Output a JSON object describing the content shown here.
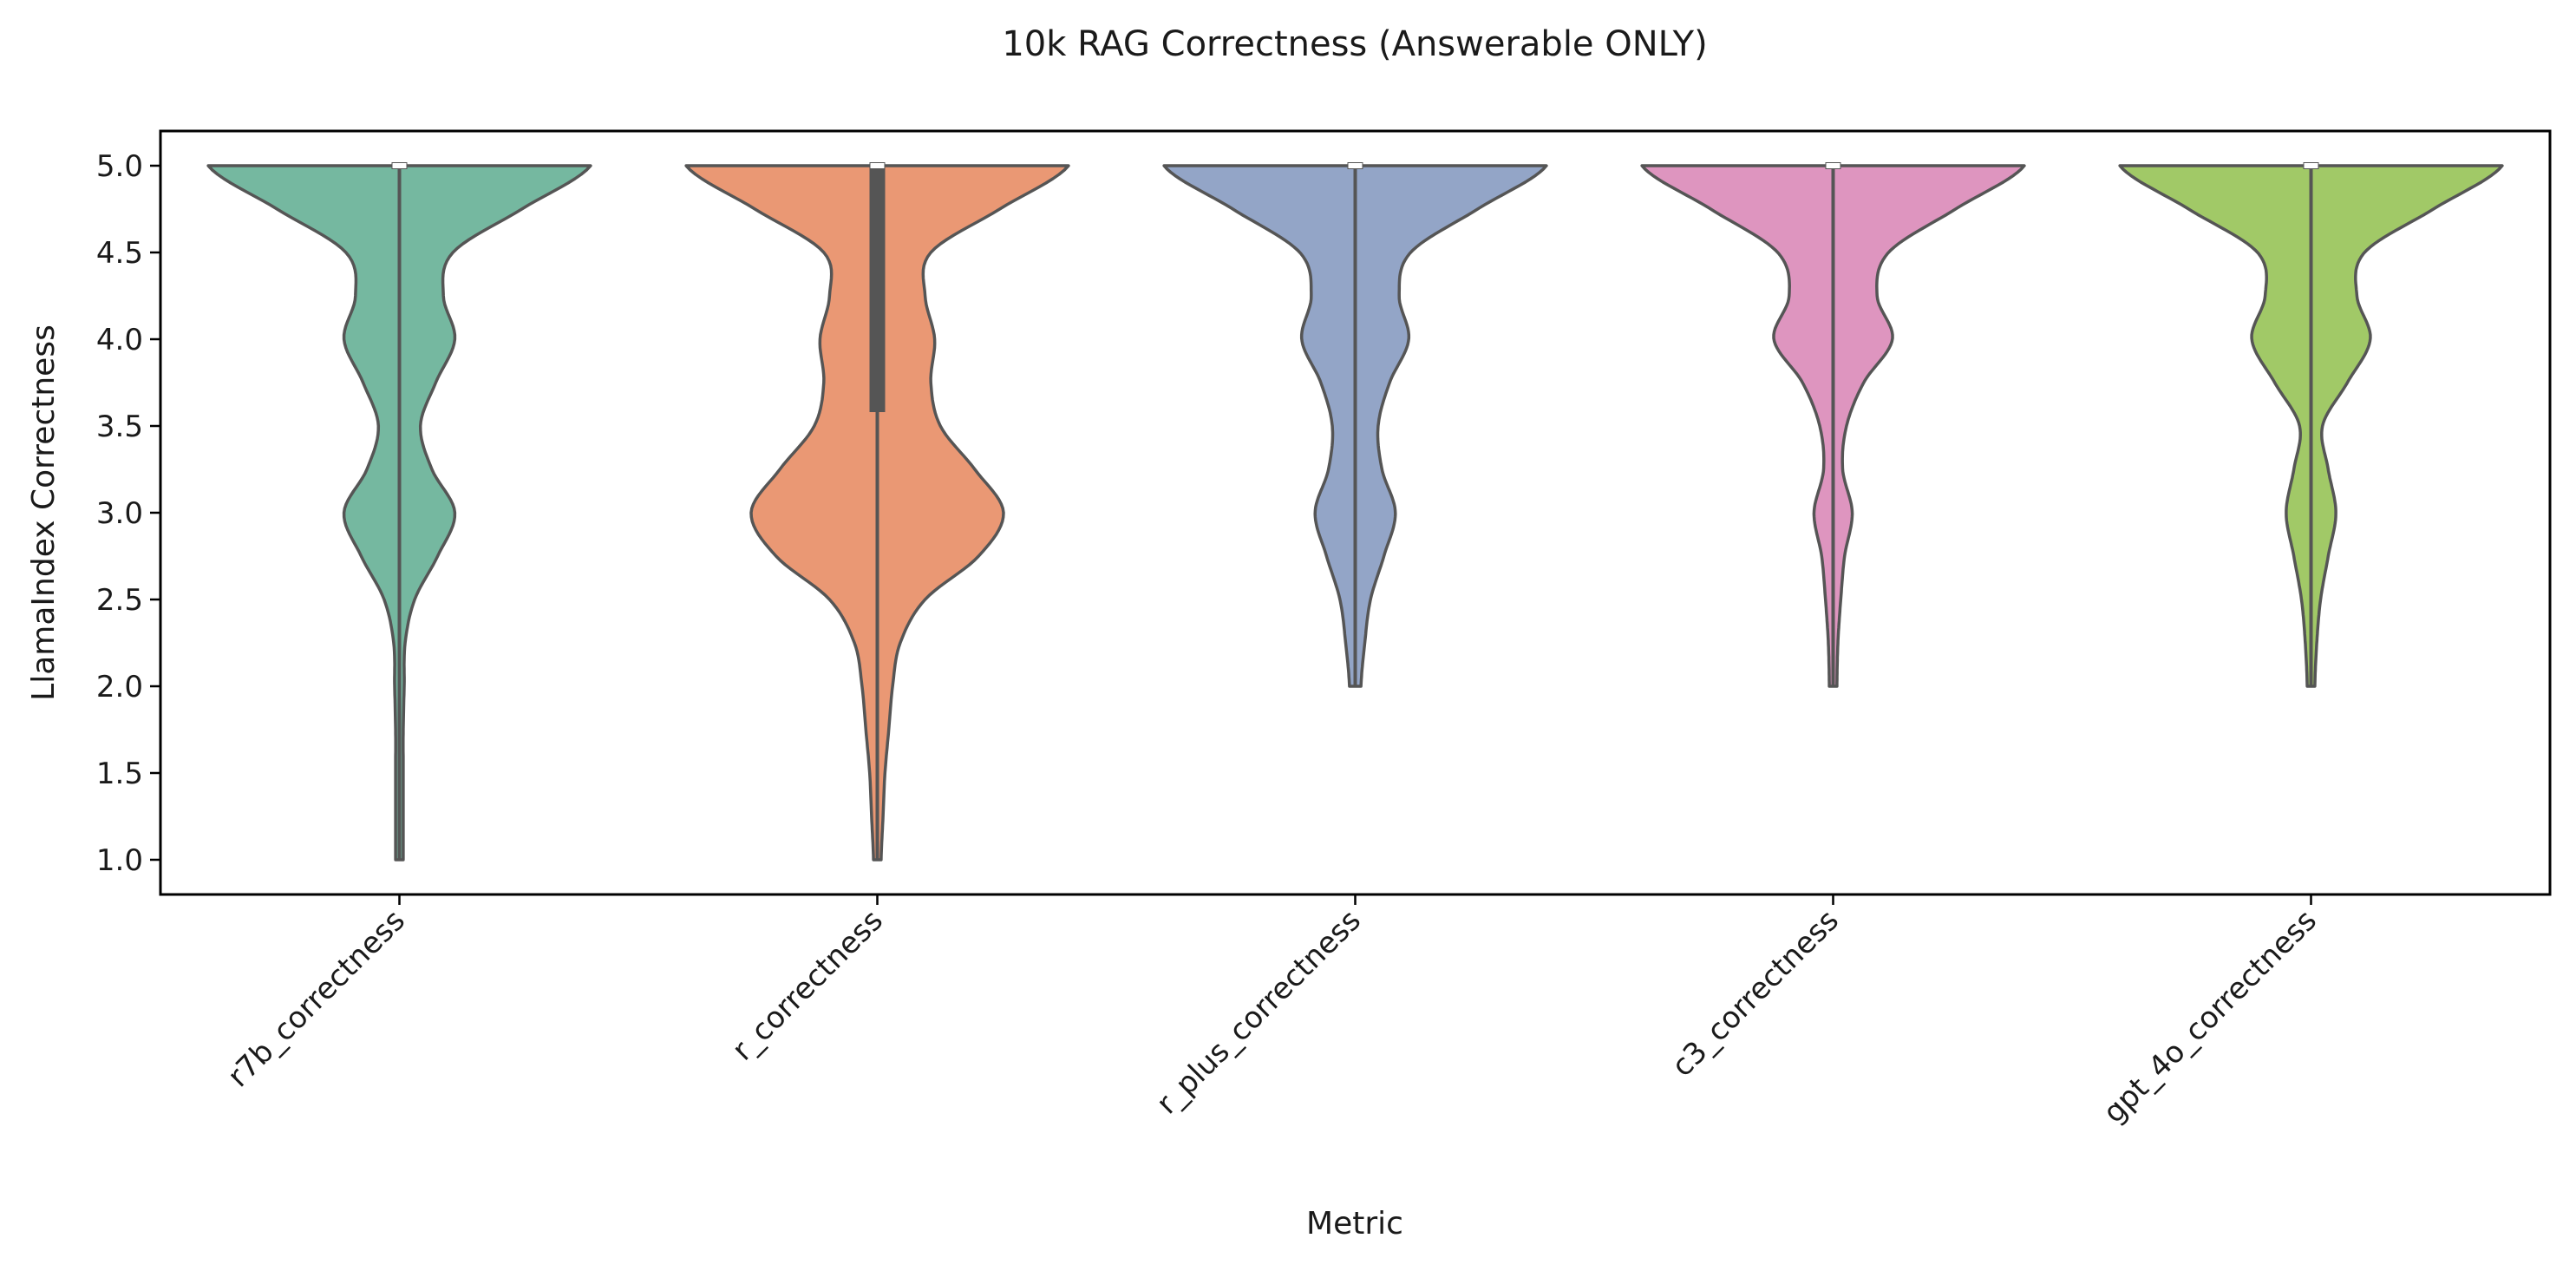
{
  "chart_data": {
    "type": "violin",
    "title": "10k RAG Correctness (Answerable ONLY)",
    "xlabel": "Metric",
    "ylabel": "LlamaIndex Correctness",
    "ylim": [
      0.8,
      5.2
    ],
    "yticks": [
      1.0,
      1.5,
      2.0,
      2.5,
      3.0,
      3.5,
      4.0,
      4.5,
      5.0
    ],
    "ytick_labels": [
      "1.0",
      "1.5",
      "2.0",
      "2.5",
      "3.0",
      "3.5",
      "4.0",
      "4.5",
      "5.0"
    ],
    "grid": false,
    "categories": [
      "r7b_correctness",
      "r_correctness",
      "r_plus_correctness",
      "c3_correctness",
      "gpt_4o_correctness"
    ],
    "series": [
      {
        "category": "r7b_correctness",
        "color": "#75b8a0",
        "min": 1.0,
        "max": 5.0,
        "q1": 5.0,
        "median": 5.0,
        "q3": 5.0,
        "density": [
          [
            1.0,
            0.02
          ],
          [
            1.25,
            0.02
          ],
          [
            1.5,
            0.02
          ],
          [
            1.75,
            0.02
          ],
          [
            2.0,
            0.025
          ],
          [
            2.25,
            0.03
          ],
          [
            2.5,
            0.08
          ],
          [
            2.75,
            0.2
          ],
          [
            3.0,
            0.29
          ],
          [
            3.25,
            0.17
          ],
          [
            3.5,
            0.11
          ],
          [
            3.75,
            0.19
          ],
          [
            4.0,
            0.29
          ],
          [
            4.25,
            0.23
          ],
          [
            4.5,
            0.28
          ],
          [
            4.75,
            0.64
          ],
          [
            5.0,
            1.0
          ]
        ]
      },
      {
        "category": "r_correctness",
        "color": "#ea9874",
        "min": 1.0,
        "max": 5.0,
        "q1": 3.6,
        "median": 5.0,
        "q3": 5.0,
        "density": [
          [
            1.0,
            0.02
          ],
          [
            1.25,
            0.03
          ],
          [
            1.5,
            0.04
          ],
          [
            1.75,
            0.06
          ],
          [
            2.0,
            0.08
          ],
          [
            2.25,
            0.12
          ],
          [
            2.5,
            0.25
          ],
          [
            2.75,
            0.53
          ],
          [
            3.0,
            0.66
          ],
          [
            3.25,
            0.51
          ],
          [
            3.5,
            0.33
          ],
          [
            3.75,
            0.28
          ],
          [
            4.0,
            0.3
          ],
          [
            4.25,
            0.25
          ],
          [
            4.5,
            0.28
          ],
          [
            4.75,
            0.64
          ],
          [
            5.0,
            1.0
          ]
        ]
      },
      {
        "category": "r_plus_correctness",
        "color": "#93a5c7",
        "min": 2.0,
        "max": 5.0,
        "q1": 5.0,
        "median": 5.0,
        "q3": 5.0,
        "density": [
          [
            2.0,
            0.03
          ],
          [
            2.25,
            0.05
          ],
          [
            2.5,
            0.08
          ],
          [
            2.75,
            0.15
          ],
          [
            3.0,
            0.21
          ],
          [
            3.25,
            0.14
          ],
          [
            3.5,
            0.12
          ],
          [
            3.75,
            0.18
          ],
          [
            4.0,
            0.28
          ],
          [
            4.25,
            0.23
          ],
          [
            4.5,
            0.29
          ],
          [
            4.75,
            0.64
          ],
          [
            5.0,
            1.0
          ]
        ]
      },
      {
        "category": "c3_correctness",
        "color": "#de95bf",
        "min": 2.0,
        "max": 5.0,
        "q1": 5.0,
        "median": 5.0,
        "q3": 5.0,
        "density": [
          [
            2.0,
            0.02
          ],
          [
            2.25,
            0.025
          ],
          [
            2.5,
            0.04
          ],
          [
            2.75,
            0.06
          ],
          [
            3.0,
            0.1
          ],
          [
            3.25,
            0.05
          ],
          [
            3.5,
            0.07
          ],
          [
            3.75,
            0.16
          ],
          [
            4.0,
            0.31
          ],
          [
            4.25,
            0.23
          ],
          [
            4.5,
            0.29
          ],
          [
            4.75,
            0.64
          ],
          [
            5.0,
            1.0
          ]
        ]
      },
      {
        "category": "gpt_4o_correctness",
        "color": "#a1c967",
        "min": 2.0,
        "max": 5.0,
        "q1": 5.0,
        "median": 5.0,
        "q3": 5.0,
        "density": [
          [
            2.0,
            0.02
          ],
          [
            2.25,
            0.03
          ],
          [
            2.5,
            0.05
          ],
          [
            2.75,
            0.09
          ],
          [
            3.0,
            0.13
          ],
          [
            3.25,
            0.09
          ],
          [
            3.5,
            0.06
          ],
          [
            3.75,
            0.19
          ],
          [
            4.0,
            0.31
          ],
          [
            4.25,
            0.24
          ],
          [
            4.5,
            0.28
          ],
          [
            4.75,
            0.64
          ],
          [
            5.0,
            1.0
          ]
        ]
      }
    ]
  }
}
